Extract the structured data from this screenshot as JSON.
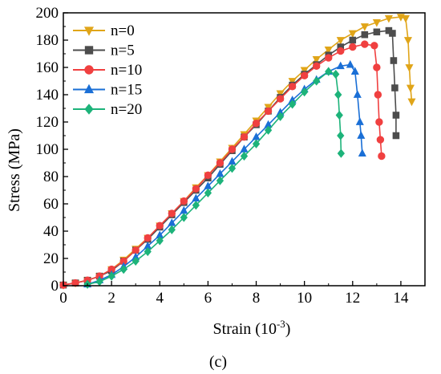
{
  "chart_data": {
    "type": "line",
    "xlabel_main": "Strain (10",
    "xlabel_exp": "-3",
    "xlabel_close": ")",
    "ylabel": "Stress (MPa)",
    "caption": "(c)",
    "xlim": [
      0,
      15
    ],
    "ylim": [
      0,
      200
    ],
    "x_ticks": [
      0,
      2,
      4,
      6,
      8,
      10,
      12,
      14
    ],
    "y_ticks": [
      0,
      20,
      40,
      60,
      80,
      100,
      120,
      140,
      160,
      180,
      200
    ],
    "legend_position": "top-left",
    "grid": false,
    "series": [
      {
        "name": "n=0",
        "color": "#e0a519",
        "marker": "triangle-down",
        "x": [
          0.0,
          0.5,
          1.0,
          1.5,
          2.0,
          2.5,
          3.0,
          3.5,
          4.0,
          4.5,
          5.0,
          5.5,
          6.0,
          6.5,
          7.0,
          7.5,
          8.0,
          8.5,
          9.0,
          9.5,
          10.0,
          10.5,
          11.0,
          11.5,
          12.0,
          12.5,
          13.0,
          13.5,
          14.0,
          14.2,
          14.3,
          14.35,
          14.4,
          14.45
        ],
        "y": [
          0.5,
          2,
          4,
          7,
          12,
          19,
          27,
          35,
          44,
          53,
          62,
          72,
          81,
          91,
          101,
          111,
          121,
          131,
          141,
          150,
          158,
          166,
          173,
          180,
          185,
          190,
          193,
          196,
          197,
          196,
          180,
          160,
          145,
          135
        ]
      },
      {
        "name": "n=5",
        "color": "#4d4d4d",
        "marker": "square",
        "x": [
          0.0,
          0.5,
          1.0,
          1.5,
          2.0,
          2.5,
          3.0,
          3.5,
          4.0,
          4.5,
          5.0,
          5.5,
          6.0,
          6.5,
          7.0,
          7.5,
          8.0,
          8.5,
          9.0,
          9.5,
          10.0,
          10.5,
          11.0,
          11.5,
          12.0,
          12.5,
          13.0,
          13.5,
          13.65,
          13.7,
          13.75,
          13.8,
          13.8
        ],
        "y": [
          0.5,
          2,
          4,
          7,
          11,
          18,
          26,
          34,
          43,
          52,
          61,
          70,
          79,
          89,
          99,
          109,
          118,
          128,
          138,
          147,
          155,
          162,
          169,
          175,
          180,
          184,
          186,
          187,
          185,
          165,
          145,
          125,
          110
        ]
      },
      {
        "name": "n=10",
        "color": "#f04040",
        "marker": "circle",
        "x": [
          0.0,
          0.5,
          1.0,
          1.5,
          2.0,
          2.5,
          3.0,
          3.5,
          4.0,
          4.5,
          5.0,
          5.5,
          6.0,
          6.5,
          7.0,
          7.5,
          8.0,
          8.5,
          9.0,
          9.5,
          10.0,
          10.5,
          11.0,
          11.5,
          12.0,
          12.5,
          12.9,
          13.0,
          13.05,
          13.1,
          13.15,
          13.2
        ],
        "y": [
          0.5,
          2,
          4,
          7,
          12,
          18,
          26,
          35,
          44,
          53,
          62,
          71,
          81,
          90,
          100,
          109,
          119,
          128,
          137,
          146,
          154,
          161,
          167,
          172,
          175,
          177,
          176,
          160,
          140,
          120,
          107,
          95
        ]
      },
      {
        "name": "n=15",
        "color": "#1a6fd6",
        "marker": "triangle-up",
        "x": [
          1.0,
          1.5,
          2.0,
          2.5,
          3.0,
          3.5,
          4.0,
          4.5,
          5.0,
          5.5,
          6.0,
          6.5,
          7.0,
          7.5,
          8.0,
          8.5,
          9.0,
          9.5,
          10.0,
          10.5,
          11.0,
          11.5,
          11.9,
          12.1,
          12.2,
          12.3,
          12.35,
          12.4
        ],
        "y": [
          1,
          4,
          8,
          14,
          21,
          29,
          37,
          46,
          55,
          64,
          73,
          82,
          91,
          100,
          109,
          118,
          127,
          136,
          144,
          151,
          157,
          161,
          162,
          157,
          140,
          120,
          110,
          97
        ]
      },
      {
        "name": "n=20",
        "color": "#1db37a",
        "marker": "diamond",
        "x": [
          1.0,
          1.5,
          2.0,
          2.5,
          3.0,
          3.5,
          4.0,
          4.5,
          5.0,
          5.5,
          6.0,
          6.5,
          7.0,
          7.5,
          8.0,
          8.5,
          9.0,
          9.5,
          10.0,
          10.5,
          11.0,
          11.3,
          11.4,
          11.45,
          11.5,
          11.52
        ],
        "y": [
          1,
          3,
          7,
          12,
          18,
          25,
          33,
          41,
          50,
          59,
          68,
          77,
          86,
          95,
          104,
          114,
          124,
          133,
          142,
          150,
          157,
          155,
          140,
          125,
          110,
          97
        ]
      }
    ]
  }
}
